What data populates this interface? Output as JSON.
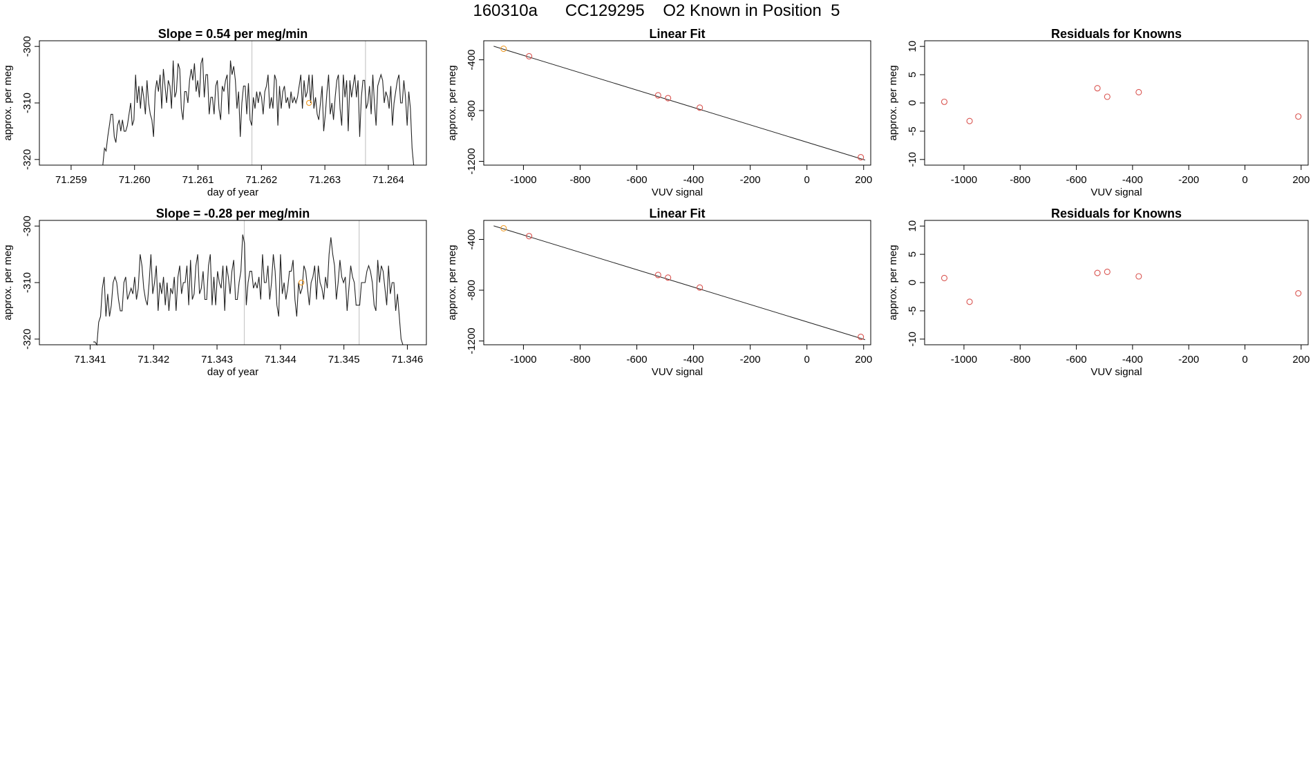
{
  "page": {
    "title": "160310a      CC129295    O2 Known in Position  5"
  },
  "colors": {
    "axis": "#000000",
    "series": "#222222",
    "known_point": "#d9534f",
    "highlight_point": "#f0a030",
    "vline": "#c8c8c8"
  },
  "chart_data": [
    {
      "id": "ts1",
      "type": "line",
      "title": "Slope =  0.54  per meg/min",
      "xlabel": "day of year",
      "ylabel": "approx. per meg",
      "xlim": [
        71.2585,
        71.2646
      ],
      "ylim": [
        -321,
        -299
      ],
      "xticks": [
        71.259,
        71.26,
        71.261,
        71.262,
        71.263,
        71.264
      ],
      "xtick_labels": [
        "71.259",
        "71.260",
        "71.261",
        "71.262",
        "71.263",
        "71.264"
      ],
      "yticks": [
        -300,
        -310,
        -320
      ],
      "ytick_labels": [
        "-300",
        "-310",
        "-320"
      ],
      "x_start": 71.2595,
      "x_end": 71.2644,
      "vlines": [
        71.26185,
        71.26364
      ],
      "marker": {
        "x": 71.26275,
        "y": -310
      },
      "series": [
        {
          "name": "signal",
          "values": [
            -321,
            -318,
            -318.5,
            -316,
            -314,
            -312,
            -312,
            -316,
            -317,
            -314,
            -313,
            -315,
            -313,
            -315,
            -315,
            -314,
            -312,
            -310,
            -314,
            -313,
            -305,
            -310,
            -307,
            -311,
            -307,
            -309,
            -312,
            -306,
            -310,
            -312,
            -313,
            -316,
            -308,
            -306,
            -308,
            -305,
            -311,
            -304,
            -307,
            -310,
            -306,
            -307,
            -311,
            -302.5,
            -309,
            -308,
            -303,
            -304,
            -311,
            -313,
            -308,
            -308,
            -310,
            -306,
            -304,
            -306,
            -303,
            -308,
            -306,
            -309,
            -303,
            -302,
            -309,
            -305,
            -305,
            -312,
            -309,
            -309,
            -312,
            -307,
            -306,
            -311,
            -313,
            -307,
            -308,
            -306,
            -305,
            -312,
            -302.5,
            -305,
            -303.5,
            -306,
            -311,
            -308,
            -316,
            -310,
            -307,
            -307,
            -312,
            -306.5,
            -313,
            -314,
            -309,
            -311,
            -308,
            -310,
            -308,
            -309,
            -312,
            -308,
            -307,
            -305,
            -311,
            -309,
            -311,
            -305,
            -306,
            -314,
            -307,
            -311,
            -308,
            -307,
            -310,
            -309,
            -311,
            -308,
            -310,
            -309,
            -310,
            -309,
            -307,
            -305,
            -311,
            -306,
            -309,
            -308,
            -305,
            -310,
            -305,
            -311,
            -309,
            -312,
            -313,
            -310,
            -307,
            -315,
            -312,
            -308,
            -305,
            -312,
            -310,
            -313,
            -309,
            -306,
            -305,
            -311,
            -314,
            -305,
            -309,
            -306,
            -315,
            -306,
            -309,
            -307,
            -305,
            -309,
            -306,
            -316,
            -309,
            -306,
            -306,
            -311,
            -310,
            -307,
            -312,
            -305,
            -310,
            -314,
            -307,
            -306,
            -305,
            -306,
            -310,
            -308,
            -309,
            -311,
            -307,
            -314,
            -310,
            -308,
            -306,
            -305,
            -310,
            -310,
            -306,
            -309,
            -314,
            -308,
            -311,
            -318,
            -321
          ]
        }
      ]
    },
    {
      "id": "fit1",
      "type": "scatter",
      "title": "Linear Fit",
      "xlabel": "VUV signal",
      "ylabel": "approx. per meg",
      "xlim": [
        -1140,
        225
      ],
      "ylim": [
        -1230,
        -250
      ],
      "xticks": [
        -1000,
        -800,
        -600,
        -400,
        -200,
        0,
        200
      ],
      "xtick_labels": [
        "-1000",
        "-800",
        "-600",
        "-400",
        "-200",
        "0",
        "200"
      ],
      "yticks": [
        -400,
        -800,
        -1200
      ],
      "ytick_labels": [
        "-400",
        "-800",
        "-1200"
      ],
      "fit_line": {
        "x": [
          -1105,
          205
        ],
        "y": [
          -293,
          -1190
        ]
      },
      "points": {
        "x": [
          -1070,
          -980,
          -525,
          -490,
          -378,
          190
        ],
        "y": [
          -313,
          -372,
          -680,
          -702,
          -777,
          -1168
        ]
      },
      "highlight_index": 0
    },
    {
      "id": "res1",
      "type": "scatter",
      "title": "Residuals for Knowns",
      "xlabel": "VUV signal",
      "ylabel": "approx. per meg",
      "xlim": [
        -1140,
        225
      ],
      "ylim": [
        -11,
        11
      ],
      "xticks": [
        -1000,
        -800,
        -600,
        -400,
        -200,
        0,
        200
      ],
      "xtick_labels": [
        "-1000",
        "-800",
        "-600",
        "-400",
        "-200",
        "0",
        "200"
      ],
      "yticks": [
        10,
        5,
        0,
        -5,
        -10
      ],
      "ytick_labels": [
        "10",
        "5",
        "0",
        "-5",
        "-10"
      ],
      "points": {
        "x": [
          -1070,
          -980,
          -525,
          -490,
          -378,
          190
        ],
        "y": [
          0.2,
          -3.2,
          2.6,
          1.1,
          1.9,
          -2.4
        ]
      }
    },
    {
      "id": "ts2",
      "type": "line",
      "title": "Slope =  -0.28  per meg/min",
      "xlabel": "day of year",
      "ylabel": "approx. per meg",
      "xlim": [
        71.3402,
        71.3463
      ],
      "ylim": [
        -321,
        -299
      ],
      "xticks": [
        71.341,
        71.342,
        71.343,
        71.344,
        71.345,
        71.346
      ],
      "xtick_labels": [
        "71.341",
        "71.342",
        "71.343",
        "71.344",
        "71.345",
        "71.346"
      ],
      "yticks": [
        -300,
        -310,
        -320
      ],
      "ytick_labels": [
        "-300",
        "-310",
        "-320"
      ],
      "x_start": 71.34105,
      "x_end": 71.34593,
      "vlines": [
        71.34343,
        71.34524
      ],
      "marker": {
        "x": 71.34433,
        "y": -310
      },
      "series": [
        {
          "name": "signal",
          "values": [
            -320.5,
            -320.5,
            -321,
            -317,
            -316,
            -311,
            -309,
            -316,
            -312,
            -316,
            -314,
            -310,
            -309,
            -310,
            -313,
            -315,
            -315,
            -310,
            -309,
            -313,
            -312,
            -311,
            -312,
            -309,
            -313,
            -311,
            -305,
            -307,
            -311,
            -313,
            -314,
            -310,
            -305,
            -312,
            -310,
            -307,
            -315,
            -310,
            -312,
            -309,
            -314,
            -310,
            -315,
            -311,
            -312,
            -309,
            -315,
            -309,
            -307,
            -312,
            -310,
            -310,
            -307,
            -314,
            -306,
            -313,
            -312,
            -307,
            -305,
            -312,
            -311,
            -308,
            -313,
            -313,
            -307,
            -305,
            -314,
            -309,
            -314,
            -308,
            -310,
            -311,
            -307,
            -315,
            -307,
            -309,
            -312,
            -308,
            -306,
            -313,
            -313,
            -310,
            -308,
            -301.5,
            -303,
            -314,
            -310,
            -308,
            -308,
            -311,
            -310,
            -311,
            -309,
            -313,
            -305,
            -310,
            -310,
            -307,
            -313,
            -310,
            -305,
            -308,
            -314,
            -316,
            -305,
            -312,
            -310,
            -313,
            -311,
            -308,
            -308,
            -306,
            -313,
            -316,
            -310,
            -312,
            -311,
            -307,
            -308,
            -311,
            -314,
            -310,
            -309,
            -307,
            -313,
            -307,
            -310,
            -311,
            -313,
            -309,
            -311,
            -305,
            -302,
            -305,
            -307,
            -313,
            -310,
            -306,
            -309,
            -310,
            -309,
            -315,
            -311,
            -307,
            -309,
            -310,
            -314,
            -314,
            -314,
            -310,
            -310,
            -310,
            -308,
            -307,
            -308,
            -310,
            -314,
            -315,
            -306,
            -310,
            -307,
            -308,
            -311,
            -314,
            -307,
            -312,
            -310,
            -310,
            -315,
            -312,
            -316,
            -320,
            -321
          ]
        }
      ]
    },
    {
      "id": "fit2",
      "type": "scatter",
      "title": "Linear Fit",
      "xlabel": "VUV signal",
      "ylabel": "approx. per meg",
      "xlim": [
        -1140,
        225
      ],
      "ylim": [
        -1230,
        -250
      ],
      "xticks": [
        -1000,
        -800,
        -600,
        -400,
        -200,
        0,
        200
      ],
      "xtick_labels": [
        "-1000",
        "-800",
        "-600",
        "-400",
        "-200",
        "0",
        "200"
      ],
      "yticks": [
        -400,
        -800,
        -1200
      ],
      "ytick_labels": [
        "-400",
        "-800",
        "-1200"
      ],
      "fit_line": {
        "x": [
          -1105,
          205
        ],
        "y": [
          -293,
          -1190
        ]
      },
      "points": {
        "x": [
          -1070,
          -980,
          -525,
          -490,
          -378,
          190
        ],
        "y": [
          -312,
          -374,
          -680,
          -701,
          -779,
          -1168
        ]
      },
      "highlight_index": 0
    },
    {
      "id": "res2",
      "type": "scatter",
      "title": "Residuals for Knowns",
      "xlabel": "VUV signal",
      "ylabel": "approx. per meg",
      "xlim": [
        -1140,
        225
      ],
      "ylim": [
        -11,
        11
      ],
      "xticks": [
        -1000,
        -800,
        -600,
        -400,
        -200,
        0,
        200
      ],
      "xtick_labels": [
        "-1000",
        "-800",
        "-600",
        "-400",
        "-200",
        "0",
        "200"
      ],
      "yticks": [
        10,
        5,
        0,
        -5,
        -10
      ],
      "ytick_labels": [
        "10",
        "5",
        "0",
        "-5",
        "-10"
      ],
      "points": {
        "x": [
          -1070,
          -980,
          -525,
          -490,
          -378,
          190
        ],
        "y": [
          0.8,
          -3.4,
          1.7,
          1.9,
          1.1,
          -1.9
        ]
      }
    }
  ]
}
